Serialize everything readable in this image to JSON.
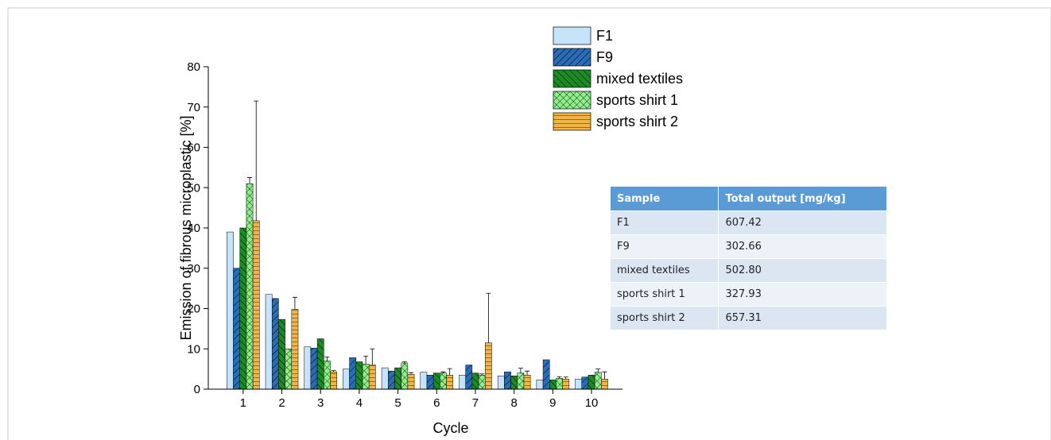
{
  "chart_data": {
    "type": "bar",
    "x_label": "Cycle",
    "y_label": "Emission of fibrous microplastic [%]",
    "x": [
      1,
      2,
      3,
      4,
      5,
      6,
      7,
      8,
      9,
      10
    ],
    "xlim": [
      0.1,
      10.8
    ],
    "xticks": [
      1,
      2,
      3,
      4,
      5,
      6,
      7,
      8,
      9,
      10
    ],
    "ylim": [
      0,
      80
    ],
    "yticks": [
      0,
      10,
      20,
      30,
      40,
      50,
      60,
      70,
      80
    ],
    "series": [
      {
        "name": "F1",
        "color": "#c5e4fa",
        "hatch": "none",
        "values": [
          39,
          23.5,
          10.5,
          5,
          5.3,
          4.2,
          3.5,
          3.3,
          2.3,
          2.5
        ]
      },
      {
        "name": "F9",
        "color": "#2a6cb6",
        "hatch": "forward",
        "values": [
          30,
          22.5,
          10.2,
          7.8,
          4.5,
          3.5,
          6,
          4.3,
          7.3,
          3
        ]
      },
      {
        "name": "mixed textiles",
        "color": "#1e8a25",
        "hatch": "back",
        "values": [
          40,
          17.3,
          12.5,
          6.8,
          5.3,
          4,
          4,
          3.3,
          2.3,
          3.5
        ]
      },
      {
        "name": "sports shirt 1",
        "color": "#8ef08a",
        "hatch": "cross",
        "values": [
          51,
          10,
          7,
          6.2,
          6.5,
          4,
          3.5,
          4,
          2.7,
          4.2
        ],
        "errors": [
          1.5,
          0,
          1,
          2,
          0.3,
          0.3,
          0.3,
          1.2,
          0.4,
          0.8
        ]
      },
      {
        "name": "sports shirt 2",
        "color": "#f2b447",
        "hatch": "grid",
        "values": [
          41.8,
          19.8,
          4.3,
          6,
          3.7,
          3.5,
          11.5,
          3.5,
          2.5,
          2.5
        ],
        "errors": [
          29.7,
          3,
          0.3,
          4,
          0.4,
          1.6,
          12.3,
          1,
          0.5,
          1.8
        ]
      }
    ]
  },
  "table": {
    "header": [
      "Sample",
      "Total output [mg/kg]"
    ],
    "rows": [
      [
        "F1",
        "607.42"
      ],
      [
        "F9",
        "302.66"
      ],
      [
        "mixed textiles",
        "502.80"
      ],
      [
        "sports shirt 1",
        "327.93"
      ],
      [
        "sports shirt 2",
        "657.31"
      ]
    ]
  }
}
